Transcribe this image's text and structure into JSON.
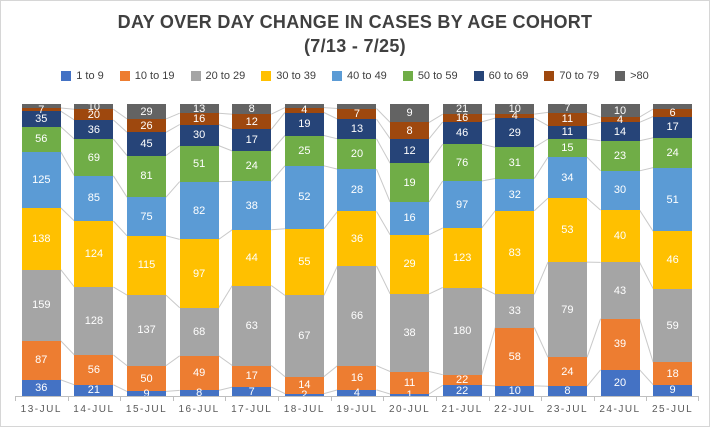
{
  "title": {
    "line1": "DAY OVER DAY CHANGE IN CASES BY AGE COHORT",
    "line2": "(7/13 - 7/25)"
  },
  "chart_data": {
    "type": "bar",
    "subtype": "100%-stacked-column",
    "title": "DAY OVER DAY CHANGE IN CASES BY AGE COHORT (7/13 - 7/25)",
    "xlabel": "",
    "ylabel": "",
    "gridlines": false,
    "legend_position": "top",
    "series_connector_lines": true,
    "bars_normalized_to_equal_height": true,
    "data_labels": "raw values shown in white inside each segment; labels of very small top/bottom segments are clipped by the plot edge",
    "categories": [
      "13-JUL",
      "14-JUL",
      "15-JUL",
      "16-JUL",
      "17-JUL",
      "18-JUL",
      "19-JUL",
      "20-JUL",
      "21-JUL",
      "22-JUL",
      "23-JUL",
      "24-JUL",
      "25-JUL"
    ],
    "series": [
      {
        "name": "1 to 9",
        "color": "#4472C4",
        "values": [
          36,
          21,
          9,
          8,
          7,
          2,
          4,
          1,
          22,
          10,
          8,
          20,
          9
        ]
      },
      {
        "name": "10 to 19",
        "color": "#ED7D31",
        "values": [
          87,
          56,
          50,
          49,
          17,
          14,
          16,
          11,
          22,
          58,
          24,
          39,
          18
        ]
      },
      {
        "name": "20 to 29",
        "color": "#A5A5A5",
        "values": [
          159,
          128,
          137,
          68,
          63,
          67,
          66,
          38,
          180,
          33,
          79,
          43,
          59
        ]
      },
      {
        "name": "30 to 39",
        "color": "#FFC000",
        "values": [
          138,
          124,
          115,
          97,
          44,
          55,
          36,
          29,
          123,
          83,
          53,
          40,
          46
        ]
      },
      {
        "name": "40 to 49",
        "color": "#5B9BD5",
        "values": [
          125,
          85,
          75,
          82,
          38,
          52,
          28,
          16,
          97,
          32,
          34,
          30,
          51
        ]
      },
      {
        "name": "50 to 59",
        "color": "#70AD47",
        "values": [
          56,
          69,
          81,
          51,
          24,
          25,
          20,
          19,
          76,
          31,
          15,
          23,
          24
        ]
      },
      {
        "name": "60 to 69",
        "color": "#264478",
        "values": [
          35,
          36,
          45,
          30,
          17,
          19,
          13,
          12,
          46,
          29,
          11,
          14,
          17
        ]
      },
      {
        "name": "70 to 79",
        "color": "#9E480E",
        "values": [
          7,
          20,
          26,
          16,
          12,
          4,
          7,
          8,
          16,
          4,
          11,
          4,
          6
        ]
      },
      {
        "name": ">80",
        "color": "#636363",
        "values": [
          9,
          10,
          29,
          13,
          8,
          3,
          3,
          9,
          21,
          10,
          7,
          10,
          4
        ],
        "labels": [
          "",
          "10",
          "29",
          "13",
          "8",
          "",
          "",
          "9",
          "21",
          "10",
          "7",
          "10",
          ""
        ],
        "note": "values with empty label strings are estimated from segment pixel height; their labels are not visible in the image"
      }
    ],
    "axis_colors": {
      "axis_line": "#BFBFBF",
      "tick_label": "#595959",
      "connector_line": "#C9C9C9",
      "title_text": "#404040"
    }
  }
}
